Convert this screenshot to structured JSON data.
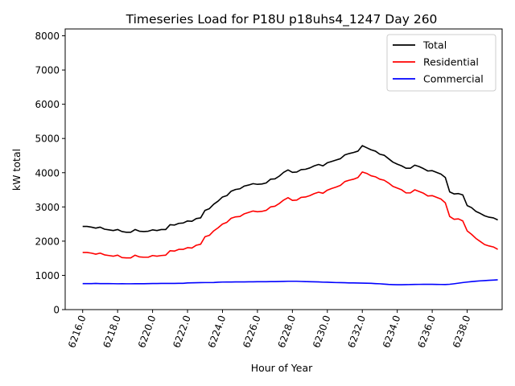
{
  "chart_data": {
    "type": "line",
    "title": "Timeseries Load for P18U p18uhs4_1247  Day 260",
    "xlabel": "Hour of Year",
    "ylabel": "kW total",
    "xlim": [
      6215.0,
      6240.0
    ],
    "ylim": [
      0,
      8200
    ],
    "x_ticks": [
      "6216.0",
      "6218.0",
      "6220.0",
      "6222.0",
      "6224.0",
      "6226.0",
      "6228.0",
      "6230.0",
      "6232.0",
      "6234.0",
      "6236.0",
      "6238.0"
    ],
    "x_tick_values": [
      6216,
      6218,
      6220,
      6222,
      6224,
      6226,
      6228,
      6230,
      6232,
      6234,
      6236,
      6238
    ],
    "y_ticks": [
      "0",
      "1000",
      "2000",
      "3000",
      "4000",
      "5000",
      "6000",
      "7000",
      "8000"
    ],
    "y_tick_values": [
      0,
      1000,
      2000,
      3000,
      4000,
      5000,
      6000,
      7000,
      8000
    ],
    "legend_position": "top-right",
    "x_start": 6216.0,
    "x_step": 0.25,
    "series": [
      {
        "name": "Total",
        "color": "#000000",
        "values": [
          2430,
          2430,
          2410,
          2380,
          2410,
          2350,
          2330,
          2310,
          2340,
          2280,
          2260,
          2260,
          2340,
          2290,
          2280,
          2290,
          2330,
          2310,
          2340,
          2340,
          2480,
          2470,
          2520,
          2530,
          2590,
          2580,
          2660,
          2680,
          2900,
          2950,
          3080,
          3170,
          3290,
          3330,
          3460,
          3510,
          3530,
          3610,
          3640,
          3680,
          3660,
          3670,
          3700,
          3810,
          3820,
          3900,
          4010,
          4080,
          4010,
          4020,
          4090,
          4100,
          4140,
          4200,
          4240,
          4200,
          4290,
          4330,
          4370,
          4410,
          4520,
          4560,
          4590,
          4630,
          4790,
          4730,
          4670,
          4630,
          4540,
          4510,
          4410,
          4310,
          4250,
          4200,
          4130,
          4130,
          4220,
          4180,
          4120,
          4050,
          4060,
          4010,
          3960,
          3860,
          3440,
          3380,
          3390,
          3350,
          3040,
          2980,
          2870,
          2810,
          2740,
          2700,
          2680,
          2620
        ]
      },
      {
        "name": "Residential",
        "color": "#ff0000",
        "values": [
          1670,
          1670,
          1650,
          1620,
          1650,
          1600,
          1580,
          1560,
          1590,
          1520,
          1510,
          1510,
          1590,
          1540,
          1530,
          1530,
          1580,
          1560,
          1580,
          1590,
          1720,
          1710,
          1760,
          1760,
          1810,
          1800,
          1880,
          1910,
          2130,
          2170,
          2300,
          2390,
          2500,
          2550,
          2670,
          2710,
          2720,
          2800,
          2840,
          2880,
          2860,
          2870,
          2900,
          3000,
          3020,
          3100,
          3200,
          3270,
          3190,
          3200,
          3280,
          3290,
          3330,
          3390,
          3430,
          3400,
          3490,
          3540,
          3580,
          3630,
          3740,
          3780,
          3810,
          3860,
          4020,
          3980,
          3910,
          3880,
          3810,
          3780,
          3700,
          3600,
          3550,
          3500,
          3410,
          3410,
          3500,
          3450,
          3400,
          3320,
          3330,
          3280,
          3230,
          3120,
          2720,
          2640,
          2650,
          2590,
          2300,
          2200,
          2080,
          1990,
          1900,
          1860,
          1830,
          1760
        ]
      },
      {
        "name": "Commercial",
        "color": "#0000ff",
        "values": [
          760,
          760,
          760,
          765,
          760,
          760,
          760,
          758,
          755,
          757,
          755,
          755,
          757,
          757,
          757,
          760,
          762,
          762,
          765,
          765,
          765,
          765,
          767,
          768,
          780,
          782,
          785,
          788,
          790,
          790,
          792,
          800,
          805,
          806,
          806,
          808,
          808,
          810,
          812,
          812,
          815,
          815,
          815,
          817,
          817,
          820,
          825,
          828,
          828,
          828,
          822,
          818,
          815,
          812,
          808,
          802,
          800,
          795,
          790,
          788,
          785,
          780,
          780,
          778,
          775,
          772,
          768,
          760,
          755,
          745,
          735,
          730,
          728,
          728,
          730,
          732,
          735,
          737,
          738,
          738,
          738,
          736,
          734,
          732,
          740,
          755,
          772,
          790,
          805,
          818,
          830,
          840,
          848,
          855,
          862,
          870
        ]
      }
    ]
  }
}
